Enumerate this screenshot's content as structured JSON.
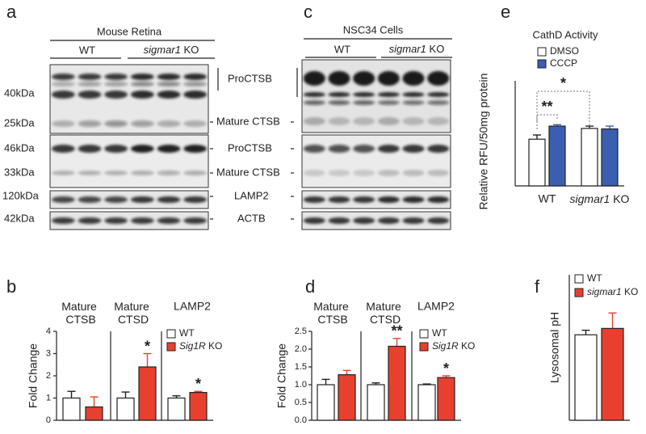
{
  "blots": {
    "a": {
      "label": "a",
      "title": "Mouse Retina",
      "groups": [
        "WT",
        "sigmar1 KO"
      ],
      "markers": [
        "40kDa",
        "25kDa",
        "46kDa",
        "33kDa",
        "120kDa",
        "42kDa"
      ]
    },
    "c": {
      "label": "c",
      "title": "NSC34 Cells",
      "groups": [
        "WT",
        "sigmar1 KO"
      ]
    },
    "bands": [
      "ProCTSB",
      "Mature CTSB",
      "ProCTSB",
      "Mature CTSB",
      "LAMP2",
      "ACTB"
    ]
  },
  "chart_data": [
    {
      "type": "bar",
      "panel": "e",
      "title": "CathD Activity",
      "ylabel": "Relative RFU/50mg protein",
      "categories": [
        "WT",
        "sigmar1 KO"
      ],
      "ylim": [
        0,
        2.25
      ],
      "series": [
        {
          "name": "DMSO",
          "color": "#ffffff",
          "values": [
            1.0,
            1.23
          ],
          "errors": [
            0.09,
            0.05
          ]
        },
        {
          "name": "CCCP",
          "color": "#3a5fb0",
          "values": [
            1.28,
            1.22
          ],
          "errors": [
            0.03,
            0.06
          ]
        }
      ],
      "comparisons": [
        "**",
        "*"
      ]
    },
    {
      "type": "bar",
      "panel": "b",
      "ylabel": "Fold Change",
      "categories": [
        "Mature CTSB",
        "Mature CTSD",
        "LAMP2"
      ],
      "ylim": [
        0,
        4
      ],
      "yticks": [
        0,
        1,
        2,
        3,
        4
      ],
      "series": [
        {
          "name": "WT",
          "color": "#ffffff",
          "values": [
            1.0,
            1.0,
            1.0
          ],
          "errors": [
            0.3,
            0.27,
            0.1
          ]
        },
        {
          "name": "Sig1R KO",
          "color": "#e8402e",
          "values": [
            0.6,
            2.4,
            1.25
          ],
          "errors": [
            0.45,
            0.6,
            0.05
          ],
          "significance": [
            null,
            "*",
            "*"
          ]
        }
      ]
    },
    {
      "type": "bar",
      "panel": "d",
      "ylabel": "Fold Change",
      "categories": [
        "Mature CTSB",
        "Mature CTSD",
        "LAMP2"
      ],
      "ylim": [
        0,
        2.5
      ],
      "yticks": [
        {
          "value": 0,
          "label": "0.0"
        },
        0.5,
        {
          "value": 1,
          "label": "1.0"
        },
        1.5,
        {
          "value": 2,
          "label": "2.0"
        },
        2.5
      ],
      "series": [
        {
          "name": "WT",
          "color": "#ffffff",
          "values": [
            1.0,
            1.0,
            1.0
          ],
          "errors": [
            0.15,
            0.05,
            0.02
          ]
        },
        {
          "name": "Sig1R KO",
          "color": "#e8402e",
          "values": [
            1.28,
            2.08,
            1.2
          ],
          "errors": [
            0.12,
            0.22,
            0.05
          ],
          "significance": [
            null,
            "**",
            "*"
          ]
        }
      ]
    },
    {
      "type": "bar",
      "panel": "f",
      "ylabel": "Lysosomal pH",
      "categories": [
        null
      ],
      "ylim": [
        0,
        8
      ],
      "series": [
        {
          "name": "WT",
          "color": "#ffffff",
          "values": [
            4.7
          ],
          "errors": [
            0.25
          ]
        },
        {
          "name": "sigmar1 KO",
          "color": "#e8402e",
          "values": [
            5.05
          ],
          "errors": [
            0.85
          ]
        }
      ]
    }
  ]
}
